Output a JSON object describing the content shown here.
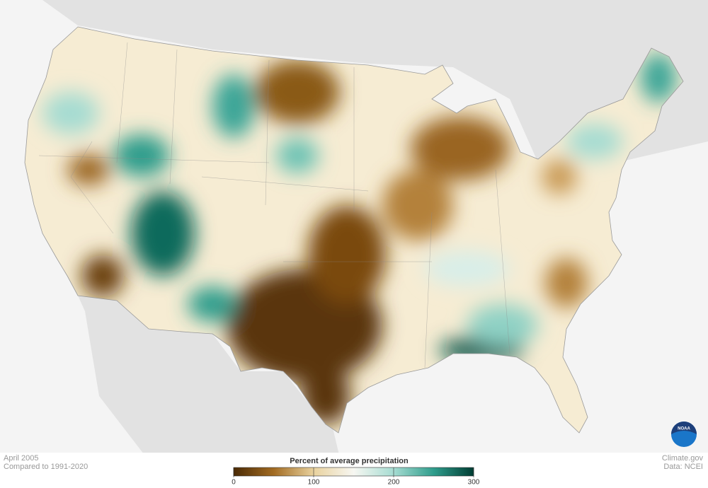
{
  "header": {
    "date": "April 2005",
    "baseline": "Compared to 1991-2020"
  },
  "legend": {
    "title": "Percent of average precipitation",
    "ticks": [
      0,
      100,
      200,
      300
    ],
    "colors": [
      "#4a2a05",
      "#a26b22",
      "#e9d29e",
      "#f7f7f2",
      "#a6dcd2",
      "#2f9d8c",
      "#003d33"
    ]
  },
  "credits": {
    "site": "Climate.gov",
    "source": "Data: NCEI",
    "logo": "NOAA"
  }
}
